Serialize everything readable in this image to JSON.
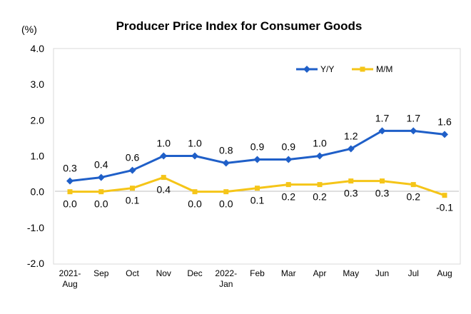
{
  "chart_data": {
    "type": "line",
    "title": "Producer Price Index for Consumer Goods",
    "unit_label": "(%)",
    "categories": [
      [
        "2021-",
        "Aug"
      ],
      [
        "Sep"
      ],
      [
        "Oct"
      ],
      [
        "Nov"
      ],
      [
        "Dec"
      ],
      [
        "2022-",
        "Jan"
      ],
      [
        "Feb"
      ],
      [
        "Mar"
      ],
      [
        "Apr"
      ],
      [
        "May"
      ],
      [
        "Jun"
      ],
      [
        "Jul"
      ],
      [
        "Aug"
      ]
    ],
    "series": [
      {
        "name": "Y/Y",
        "color": "#1F5FC8",
        "marker": "diamond",
        "values": [
          0.3,
          0.4,
          0.6,
          1.0,
          1.0,
          0.8,
          0.9,
          0.9,
          1.0,
          1.2,
          1.7,
          1.7,
          1.6
        ],
        "labels": [
          "0.3",
          "0.4",
          "0.6",
          "1.0",
          "1.0",
          "0.8",
          "0.9",
          "0.9",
          "1.0",
          "1.2",
          "1.7",
          "1.7",
          "1.6"
        ],
        "label_position": "above"
      },
      {
        "name": "M/M",
        "color": "#F5C518",
        "marker": "square",
        "values": [
          0.0,
          0.0,
          0.1,
          0.4,
          0.0,
          0.0,
          0.1,
          0.2,
          0.2,
          0.3,
          0.3,
          0.2,
          -0.1
        ],
        "labels": [
          "0.0",
          "0.0",
          "0.1",
          "0.4",
          "0.0",
          "0.0",
          "0.1",
          "0.2",
          "0.2",
          "0.3",
          "0.3",
          "0.2",
          "-0.1"
        ],
        "label_position": "below"
      }
    ],
    "ylim": [
      -2.0,
      4.0
    ],
    "yticks": [
      "4.0",
      "3.0",
      "2.0",
      "1.0",
      "0.0",
      "-1.0",
      "-2.0"
    ],
    "ytick_values": [
      4,
      3,
      2,
      1,
      0,
      -1,
      -2
    ],
    "grid": false,
    "legend_placement": "top-right"
  }
}
